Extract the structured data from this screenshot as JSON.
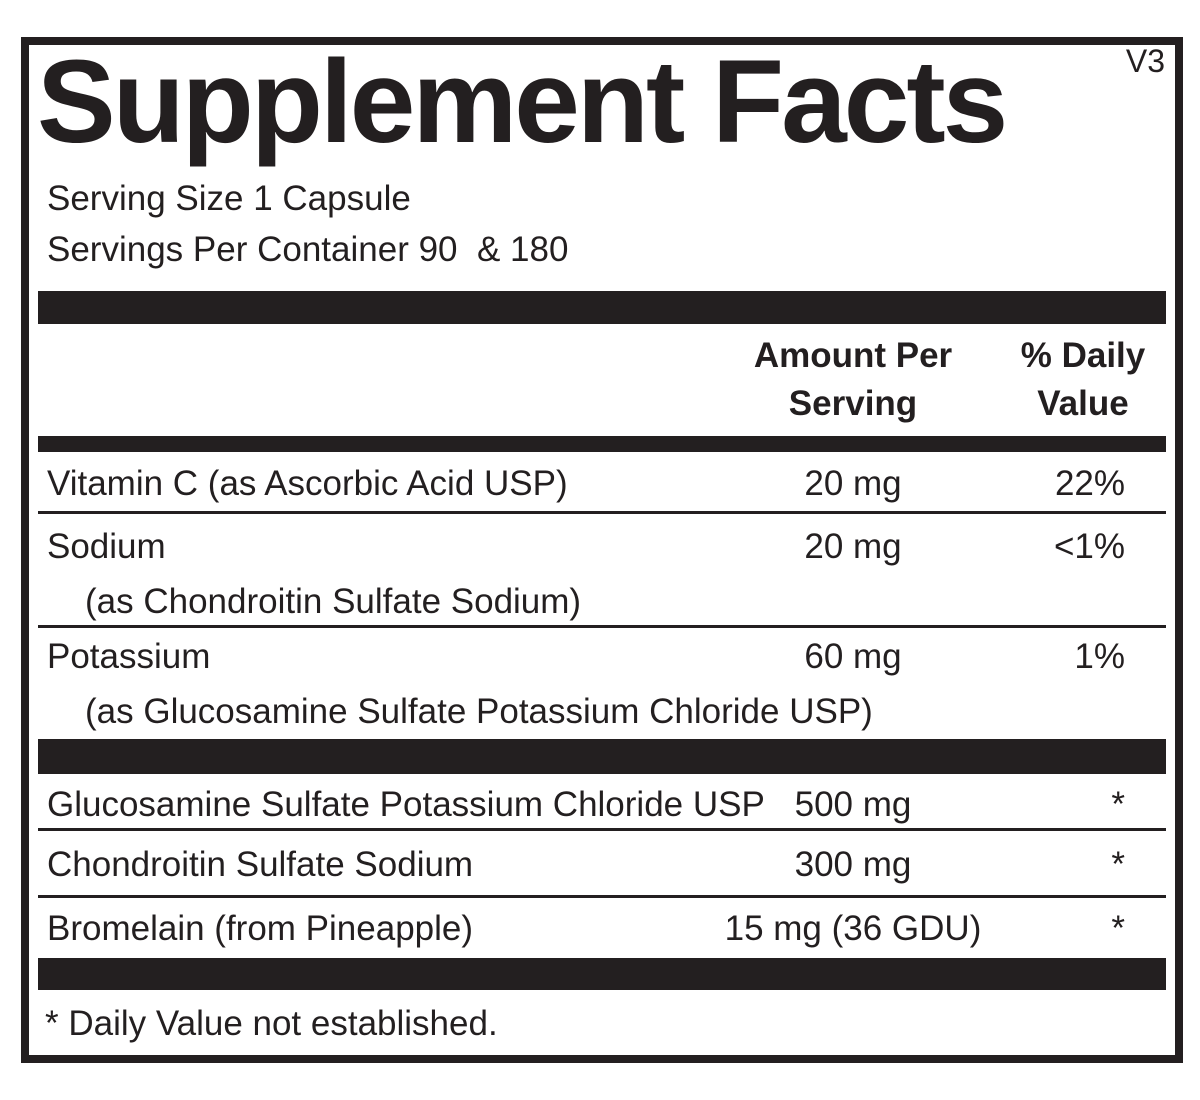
{
  "label": {
    "version": "V3",
    "title": "Supplement Facts",
    "serving_size": "Serving Size 1 Capsule",
    "servings_per_container": "Servings Per Container 90  & 180",
    "headers": {
      "amount_line1": "Amount Per",
      "amount_line2": "Serving",
      "dv_line1": "% Daily",
      "dv_line2": "Value"
    },
    "nutrients": [
      {
        "name": "Vitamin C (as Ascorbic Acid USP)",
        "source": "",
        "amount": "20 mg",
        "dv": "22%"
      },
      {
        "name": "Sodium",
        "source": "(as Chondroitin Sulfate Sodium)",
        "amount": "20 mg",
        "dv": "<1%"
      },
      {
        "name": "Potassium",
        "source": "(as Glucosamine Sulfate Potassium Chloride USP)",
        "amount": "60 mg",
        "dv": "1%"
      }
    ],
    "ingredients": [
      {
        "name": "Glucosamine Sulfate Potassium Chloride USP",
        "amount": "500 mg",
        "dv": "*"
      },
      {
        "name": "Chondroitin Sulfate Sodium",
        "amount": "300 mg",
        "dv": "*"
      },
      {
        "name": "Bromelain (from Pineapple)",
        "amount": "15 mg (36 GDU)",
        "dv": "*"
      }
    ],
    "footnote": "* Daily Value not established.",
    "colors": {
      "ink": "#231f20",
      "background": "#ffffff"
    }
  }
}
